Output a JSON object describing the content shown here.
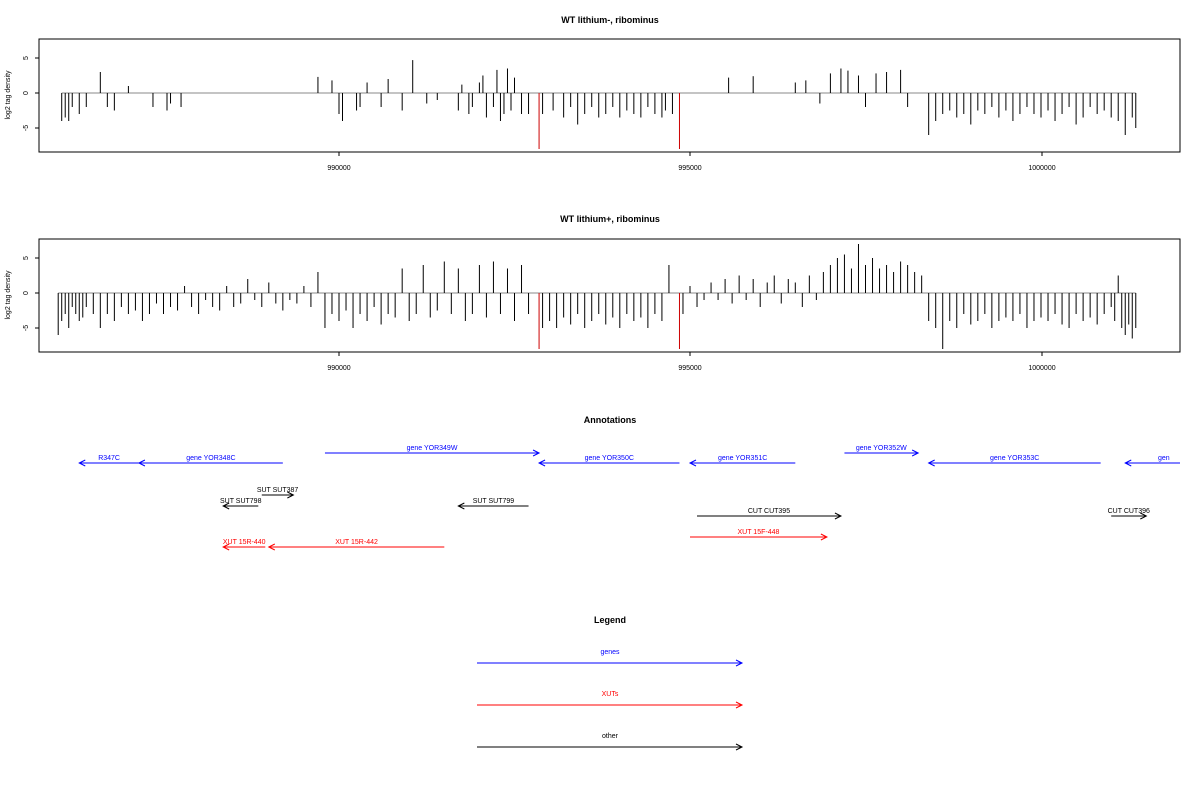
{
  "panels": [
    {
      "title": "WT lithium-, ribominus",
      "ylabel": "log2 tag density",
      "yticks": [
        "-5",
        "0",
        "5"
      ],
      "xticks": [
        "990000",
        "995000",
        "1000000"
      ]
    },
    {
      "title": "WT lithium+, ribominus",
      "ylabel": "log2 tag density",
      "yticks": [
        "-5",
        "0",
        "5"
      ],
      "xticks": [
        "990000",
        "995000",
        "1000000"
      ]
    }
  ],
  "annotations_title": "Annotations",
  "annotations": [
    {
      "label": "R347C",
      "x0": 986300,
      "x1": 987150,
      "strand": "-",
      "type": "gene",
      "row": 1
    },
    {
      "label": "gene YOR348C",
      "x0": 987150,
      "x1": 989200,
      "strand": "-",
      "type": "gene",
      "row": 1
    },
    {
      "label": "gene YOR349W",
      "x0": 989800,
      "x1": 992850,
      "strand": "+",
      "type": "gene",
      "row": 0
    },
    {
      "label": "gene YOR350C",
      "x0": 992850,
      "x1": 994850,
      "strand": "-",
      "type": "gene",
      "row": 1
    },
    {
      "label": "gene YOR351C",
      "x0": 995000,
      "x1": 996500,
      "strand": "-",
      "type": "gene",
      "row": 1
    },
    {
      "label": "gene YOR352W",
      "x0": 997200,
      "x1": 998250,
      "strand": "+",
      "type": "gene",
      "row": 0
    },
    {
      "label": "gene YOR353C",
      "x0": 998400,
      "x1": 1000850,
      "strand": "-",
      "type": "gene",
      "row": 1
    },
    {
      "label": "gen",
      "x0": 1001200,
      "x1": 1002300,
      "strand": "-",
      "type": "gene",
      "row": 1
    },
    {
      "label": "SUT SUT387",
      "x0": 988900,
      "x1": 989350,
      "strand": "+",
      "type": "other",
      "row": 3
    },
    {
      "label": "SUT SUT798",
      "x0": 988350,
      "x1": 988850,
      "strand": "-",
      "type": "other",
      "row": 4
    },
    {
      "label": "SUT SUT799",
      "x0": 991700,
      "x1": 992700,
      "strand": "-",
      "type": "other",
      "row": 4
    },
    {
      "label": "CUT CUT395",
      "x0": 995100,
      "x1": 997150,
      "strand": "+",
      "type": "other",
      "row": 5
    },
    {
      "label": "CUT CUT396",
      "x0": 1001000,
      "x1": 1001500,
      "strand": "+",
      "type": "other",
      "row": 5
    },
    {
      "label": "XUT 15R-440",
      "x0": 988350,
      "x1": 988950,
      "strand": "-",
      "type": "xut",
      "row": 7
    },
    {
      "label": "XUT 15R-442",
      "x0": 989000,
      "x1": 991500,
      "strand": "-",
      "type": "xut",
      "row": 7
    },
    {
      "label": "XUT 15F-448",
      "x0": 995000,
      "x1": 996950,
      "strand": "+",
      "type": "xut",
      "row": 6
    }
  ],
  "legend_title": "Legend",
  "legend": [
    {
      "label": "genes",
      "type": "gene"
    },
    {
      "label": "XUTs",
      "type": "xut"
    },
    {
      "label": "other",
      "type": "other"
    }
  ],
  "colors": {
    "gene": "#0000ff",
    "xut": "#ff0000",
    "other": "#000000",
    "marker": "#cc0000",
    "axis": "#000000",
    "baseline": "#888888"
  },
  "chart_data": [
    {
      "type": "bar",
      "title": "WT lithium-, ribominus",
      "xlabel": "",
      "ylabel": "log2 tag density",
      "xlim": [
        985600,
        1001800
      ],
      "ylim": [
        -8,
        8
      ],
      "highlight_x": [
        992850,
        994850
      ],
      "x": [
        986050,
        986100,
        986150,
        986200,
        986300,
        986400,
        986600,
        986700,
        986800,
        987000,
        987350,
        987550,
        987600,
        987750,
        989700,
        989900,
        990000,
        990050,
        990250,
        990300,
        990400,
        990600,
        990700,
        990900,
        991050,
        991250,
        991400,
        991700,
        991750,
        991850,
        991900,
        992000,
        992050,
        992100,
        992200,
        992250,
        992300,
        992350,
        992400,
        992450,
        992500,
        992600,
        992700,
        992850,
        992900,
        993050,
        993200,
        993300,
        993400,
        993500,
        993600,
        993700,
        993800,
        993900,
        994000,
        994100,
        994200,
        994300,
        994400,
        994500,
        994600,
        994650,
        994750,
        994850,
        995550,
        995900,
        996500,
        996650,
        996850,
        997000,
        997150,
        997250,
        997400,
        997500,
        997650,
        997800,
        998000,
        998100,
        998400,
        998500,
        998600,
        998700,
        998800,
        998900,
        999000,
        999100,
        999200,
        999300,
        999400,
        999500,
        999600,
        999700,
        999800,
        999900,
        1000000,
        1000100,
        1000200,
        1000300,
        1000400,
        1000500,
        1000600,
        1000700,
        1000800,
        1000900,
        1001000,
        1001100,
        1001200,
        1001300,
        1001350
      ],
      "y": [
        -4,
        -3.5,
        -4,
        -2,
        -3,
        -2,
        3,
        -2,
        -2.5,
        1,
        -2,
        -2.5,
        -1.5,
        -2,
        2.3,
        1.8,
        -3,
        -4,
        -2.5,
        -2,
        1.5,
        -2,
        2,
        -2.5,
        4.7,
        -1.5,
        -1,
        -2.5,
        1.2,
        -3,
        -2,
        1.5,
        2.5,
        -3.5,
        -2,
        3.3,
        -4,
        -3,
        3.5,
        -2.5,
        2.2,
        -3,
        -3,
        -8,
        -3,
        -2.5,
        -3.5,
        -2,
        -4.5,
        -3,
        -2,
        -3.5,
        -3,
        -2,
        -3.5,
        -2.5,
        -3,
        -3.5,
        -2,
        -3,
        -3.5,
        -2.5,
        -3,
        -8,
        2.2,
        2.4,
        1.5,
        1.8,
        -1.5,
        2.8,
        3.5,
        3.2,
        2.5,
        -2,
        2.8,
        3,
        3.3,
        -2,
        -6,
        -4,
        -3,
        -2.5,
        -3.5,
        -3,
        -4.5,
        -2.5,
        -3,
        -2,
        -3.5,
        -2.5,
        -4,
        -3,
        -2,
        -3,
        -3.5,
        -2.5,
        -4,
        -3,
        -2,
        -4.5,
        -3.5,
        -2,
        -3,
        -2.5,
        -3.5,
        -4,
        -6,
        -3.5,
        -5
      ]
    },
    {
      "type": "bar",
      "title": "WT lithium+, ribominus",
      "xlabel": "",
      "ylabel": "log2 tag density",
      "xlim": [
        985600,
        1001800
      ],
      "ylim": [
        -8,
        8
      ],
      "highlight_x": [
        992850,
        994850
      ],
      "x": [
        986000,
        986050,
        986100,
        986150,
        986200,
        986250,
        986300,
        986350,
        986400,
        986500,
        986600,
        986700,
        986800,
        986900,
        987000,
        987100,
        987200,
        987300,
        987400,
        987500,
        987600,
        987700,
        987800,
        987900,
        988000,
        988100,
        988200,
        988300,
        988400,
        988500,
        988600,
        988700,
        988800,
        988900,
        989000,
        989100,
        989200,
        989300,
        989400,
        989500,
        989600,
        989700,
        989800,
        989900,
        990000,
        990100,
        990200,
        990300,
        990400,
        990500,
        990600,
        990700,
        990800,
        990900,
        991000,
        991100,
        991200,
        991300,
        991400,
        991500,
        991600,
        991700,
        991800,
        991900,
        992000,
        992100,
        992200,
        992300,
        992400,
        992500,
        992600,
        992700,
        992850,
        992900,
        993000,
        993100,
        993200,
        993300,
        993400,
        993500,
        993600,
        993700,
        993800,
        993900,
        994000,
        994100,
        994200,
        994300,
        994400,
        994500,
        994600,
        994700,
        994850,
        994900,
        995000,
        995100,
        995200,
        995300,
        995400,
        995500,
        995600,
        995700,
        995800,
        995900,
        996000,
        996100,
        996200,
        996300,
        996400,
        996500,
        996600,
        996700,
        996800,
        996900,
        997000,
        997100,
        997200,
        997300,
        997400,
        997500,
        997600,
        997700,
        997800,
        997900,
        998000,
        998100,
        998200,
        998300,
        998400,
        998500,
        998600,
        998700,
        998800,
        998900,
        999000,
        999100,
        999200,
        999300,
        999400,
        999500,
        999600,
        999700,
        999800,
        999900,
        1000000,
        1000100,
        1000200,
        1000300,
        1000400,
        1000500,
        1000600,
        1000700,
        1000800,
        1000900,
        1001000,
        1001050,
        1001100,
        1001150,
        1001200,
        1001250,
        1001300,
        1001350
      ],
      "y": [
        -6,
        -4,
        -3,
        -5,
        -2,
        -3,
        -4,
        -3.5,
        -2,
        -3,
        -5,
        -3,
        -4,
        -2,
        -3,
        -2.5,
        -4,
        -3,
        -1.5,
        -3,
        -2,
        -2.5,
        1,
        -2,
        -3,
        -1,
        -2,
        -2.5,
        1,
        -2,
        -1.5,
        2,
        -1,
        -2,
        1.5,
        -1.5,
        -2.5,
        -1,
        -1.5,
        1,
        -2,
        3,
        -5,
        -3,
        -4,
        -2.5,
        -5,
        -3,
        -4,
        -2,
        -4.5,
        -3,
        -3.5,
        3.5,
        -4,
        -3,
        4,
        -3.5,
        -2.5,
        4.5,
        -3,
        3.5,
        -4,
        -3,
        4,
        -3.5,
        4.5,
        -3,
        3.5,
        -4,
        4,
        -3,
        -8,
        -5,
        -4,
        -5,
        -3.5,
        -4.5,
        -3,
        -5,
        -4,
        -3,
        -4.5,
        -3.5,
        -5,
        -3,
        -4,
        -3.5,
        -5,
        -3,
        -4,
        4,
        -8,
        -3,
        1,
        -2,
        -1,
        1.5,
        -1,
        2,
        -1.5,
        2.5,
        -1,
        2,
        -2,
        1.5,
        2.5,
        -1.5,
        2,
        1.5,
        -2,
        2.5,
        -1,
        3,
        4,
        5,
        5.5,
        3.5,
        7,
        4,
        5,
        3.5,
        4,
        3,
        4.5,
        4,
        3,
        2.5,
        -4,
        -5,
        -8,
        -4,
        -5,
        -3,
        -4.5,
        -4,
        -3,
        -5,
        -4,
        -3.5,
        -4,
        -3,
        -5,
        -4,
        -3.5,
        -4,
        -3,
        -4.5,
        -5,
        -3,
        -4,
        -3.5,
        -4.5,
        -3,
        -2,
        -4,
        2.5,
        -5,
        -6,
        -4.5,
        -6.5,
        -5
      ]
    }
  ]
}
